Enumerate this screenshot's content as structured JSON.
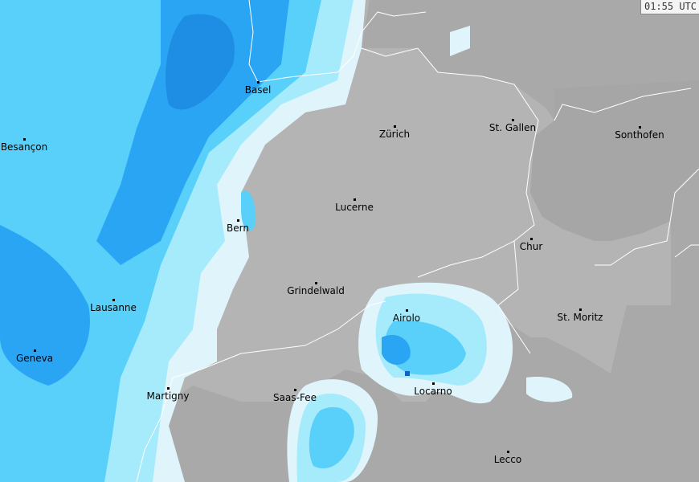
{
  "timestamp": "01:55 UTC",
  "colors": {
    "land_outside": "#a9a9a9",
    "land_switzerland": "#b4b4b4",
    "border": "#ffffff",
    "precip_very_light": "#e0f5fb",
    "precip_light": "#a6ebfb",
    "precip_moderate": "#58d0f9",
    "precip_heavy": "#2aa5f4",
    "precip_very_heavy": "#1c88e0",
    "precip_intense": "#1060d0"
  },
  "cities": [
    {
      "name": "Basel"
    },
    {
      "name": "Zürich"
    },
    {
      "name": "St. Gallen"
    },
    {
      "name": "Sonthofen"
    },
    {
      "name": "Besançon"
    },
    {
      "name": "Lucerne"
    },
    {
      "name": "Bern"
    },
    {
      "name": "Chur"
    },
    {
      "name": "Grindelwald"
    },
    {
      "name": "Lausanne"
    },
    {
      "name": "Airolo"
    },
    {
      "name": "St. Moritz"
    },
    {
      "name": "Geneva"
    },
    {
      "name": "Martigny"
    },
    {
      "name": "Saas-Fee"
    },
    {
      "name": "Locarno"
    },
    {
      "name": "Lecco"
    }
  ]
}
